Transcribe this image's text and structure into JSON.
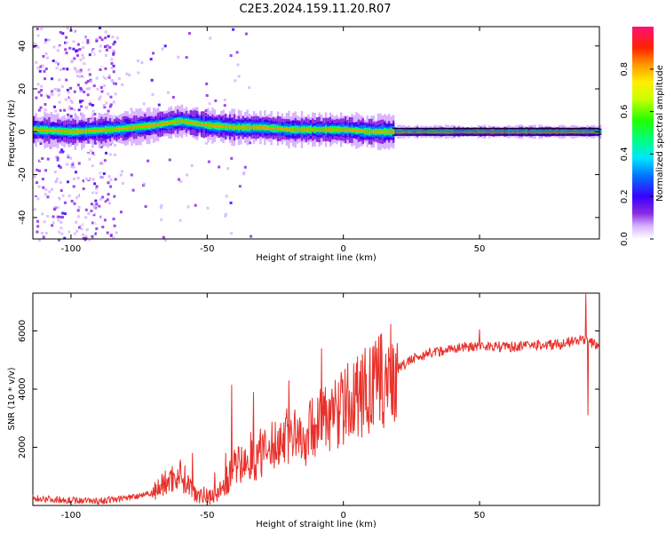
{
  "title": "C2E3.2024.159.11.20.R07",
  "chart_data": [
    {
      "type": "heatmap",
      "xlabel": "Height of straight line (km)",
      "ylabel": "Frequency (Hz)",
      "xlim": [
        -114,
        94
      ],
      "ylim": [
        -50,
        49
      ],
      "xticks": [
        -100,
        -50,
        0,
        50
      ],
      "yticks": [
        -40,
        -20,
        0,
        20,
        40
      ],
      "colorbar": {
        "label": "Normalized spectral amplitude",
        "range": [
          0,
          1
        ],
        "ticks": [
          0.0,
          0.2,
          0.4,
          0.6,
          0.8
        ]
      },
      "trace_center_hz": [
        {
          "x": -114,
          "y": 1
        },
        {
          "x": -100,
          "y": 0
        },
        {
          "x": -85,
          "y": 1
        },
        {
          "x": -70,
          "y": 3
        },
        {
          "x": -60,
          "y": 5
        },
        {
          "x": -50,
          "y": 3
        },
        {
          "x": -40,
          "y": 2
        },
        {
          "x": -30,
          "y": 2
        },
        {
          "x": -20,
          "y": 1
        },
        {
          "x": -10,
          "y": 1
        },
        {
          "x": 0,
          "y": 1
        },
        {
          "x": 10,
          "y": 0
        },
        {
          "x": 20,
          "y": 0
        },
        {
          "x": 94,
          "y": 0
        }
      ],
      "noise_band_km": [
        -106,
        -84
      ]
    },
    {
      "type": "line",
      "xlabel": "Height of straight line (km)",
      "ylabel": "SNR (10 * v/v)",
      "xlim": [
        -114,
        94
      ],
      "ylim": [
        0,
        7300
      ],
      "xticks": [
        -100,
        -50,
        0,
        50
      ],
      "yticks": [
        2000,
        4000,
        6000
      ],
      "color": "#e8302a",
      "envelope": [
        {
          "x": -114,
          "y": 250
        },
        {
          "x": -100,
          "y": 180
        },
        {
          "x": -90,
          "y": 150
        },
        {
          "x": -80,
          "y": 250
        },
        {
          "x": -70,
          "y": 450
        },
        {
          "x": -65,
          "y": 800
        },
        {
          "x": -60,
          "y": 1100
        },
        {
          "x": -55,
          "y": 500
        },
        {
          "x": -50,
          "y": 300
        },
        {
          "x": -45,
          "y": 500
        },
        {
          "x": -40,
          "y": 1300
        },
        {
          "x": -35,
          "y": 1500
        },
        {
          "x": -30,
          "y": 1700
        },
        {
          "x": -25,
          "y": 2100
        },
        {
          "x": -20,
          "y": 2500
        },
        {
          "x": -15,
          "y": 2200
        },
        {
          "x": -10,
          "y": 2900
        },
        {
          "x": -5,
          "y": 3000
        },
        {
          "x": 0,
          "y": 3400
        },
        {
          "x": 5,
          "y": 3700
        },
        {
          "x": 10,
          "y": 4000
        },
        {
          "x": 15,
          "y": 4300
        },
        {
          "x": 20,
          "y": 4700
        },
        {
          "x": 25,
          "y": 5000
        },
        {
          "x": 30,
          "y": 5200
        },
        {
          "x": 40,
          "y": 5400
        },
        {
          "x": 50,
          "y": 5500
        },
        {
          "x": 60,
          "y": 5450
        },
        {
          "x": 70,
          "y": 5500
        },
        {
          "x": 80,
          "y": 5550
        },
        {
          "x": 88,
          "y": 5700
        },
        {
          "x": 94,
          "y": 5500
        }
      ],
      "spikes": [
        {
          "x": -41,
          "y": 4150
        },
        {
          "x": -33,
          "y": 3900
        },
        {
          "x": -20,
          "y": 4300
        },
        {
          "x": -8,
          "y": 5400
        },
        {
          "x": 7,
          "y": 5200
        },
        {
          "x": 12,
          "y": 5000
        },
        {
          "x": 50,
          "y": 6050
        },
        {
          "x": 89,
          "y": 7300
        },
        {
          "x": 89.8,
          "y": 3100
        }
      ]
    }
  ]
}
